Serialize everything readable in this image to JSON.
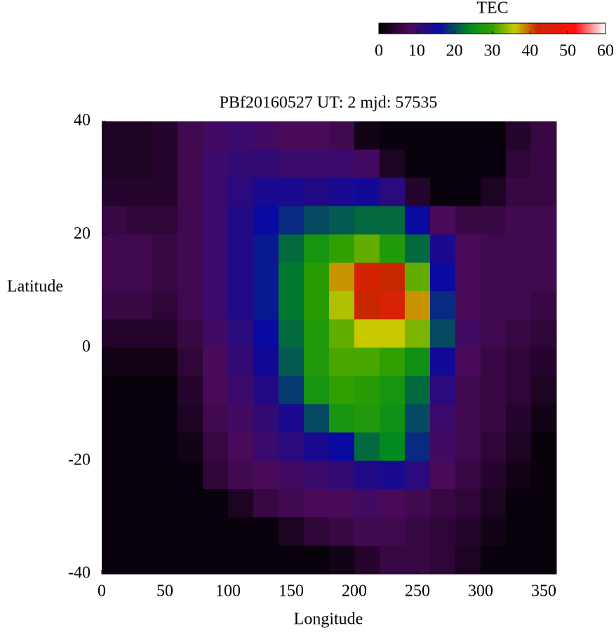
{
  "chart_data": {
    "type": "heatmap",
    "title": "PBf20160527  UT: 2  mjd: 57535",
    "x_label": "Longitude",
    "y_label": "Latitude",
    "xlim": [
      0,
      360
    ],
    "ylim": [
      -40,
      40
    ],
    "xticks": [
      0,
      50,
      100,
      150,
      200,
      250,
      300,
      350
    ],
    "yticks": [
      -40,
      -20,
      0,
      20,
      40
    ],
    "x": [
      10,
      30,
      50,
      70,
      90,
      110,
      130,
      150,
      170,
      190,
      210,
      230,
      250,
      270,
      290,
      310,
      330,
      350
    ],
    "y": [
      37.5,
      32.5,
      27.5,
      22.5,
      17.5,
      12.5,
      7.5,
      2.5,
      -2.5,
      -7.5,
      -12.5,
      -17.5,
      -22.5,
      -27.5,
      -32.5,
      -37.5
    ],
    "values": [
      [
        3,
        3,
        4,
        7,
        9,
        10,
        9,
        8,
        8,
        7,
        2,
        1,
        1,
        1,
        1,
        1,
        4,
        6
      ],
      [
        3,
        3,
        4,
        7,
        10,
        11,
        11,
        10,
        10,
        10,
        9,
        3,
        1,
        1,
        1,
        1,
        5,
        6
      ],
      [
        4,
        4,
        4,
        7,
        10,
        12,
        14,
        14,
        13,
        14,
        15,
        12,
        4,
        1,
        1,
        3,
        6,
        6
      ],
      [
        6,
        5,
        5,
        7,
        10,
        13,
        16,
        18,
        20,
        21,
        22,
        22,
        16,
        8,
        6,
        6,
        7,
        7
      ],
      [
        7,
        7,
        6,
        7,
        10,
        13,
        17,
        22,
        27,
        30,
        32,
        28,
        22,
        14,
        8,
        7,
        7,
        7
      ],
      [
        7,
        7,
        6,
        7,
        10,
        13,
        17,
        23,
        29,
        38,
        44,
        42,
        32,
        16,
        8,
        7,
        7,
        7
      ],
      [
        6,
        6,
        5,
        7,
        10,
        13,
        17,
        23,
        29,
        35,
        42,
        45,
        38,
        18,
        8,
        7,
        7,
        6
      ],
      [
        4,
        4,
        4,
        6,
        9,
        12,
        16,
        22,
        28,
        32,
        36,
        36,
        33,
        20,
        9,
        7,
        6,
        5
      ],
      [
        2,
        2,
        2,
        5,
        8,
        11,
        15,
        21,
        28,
        31,
        31,
        30,
        26,
        15,
        8,
        6,
        5,
        4
      ],
      [
        1,
        1,
        1,
        4,
        8,
        10,
        13,
        19,
        27,
        30,
        29,
        27,
        22,
        12,
        7,
        6,
        5,
        3
      ],
      [
        1,
        1,
        1,
        3,
        7,
        9,
        11,
        14,
        20,
        27,
        28,
        26,
        20,
        10,
        7,
        6,
        4,
        2
      ],
      [
        1,
        1,
        1,
        2,
        6,
        8,
        10,
        12,
        14,
        16,
        22,
        24,
        18,
        9,
        7,
        5,
        3,
        1
      ],
      [
        1,
        1,
        1,
        1,
        5,
        7,
        8,
        9,
        10,
        11,
        13,
        14,
        12,
        8,
        6,
        4,
        2,
        1
      ],
      [
        1,
        1,
        1,
        1,
        1,
        3,
        6,
        7,
        8,
        8,
        9,
        8,
        7,
        6,
        5,
        3,
        1,
        1
      ],
      [
        1,
        1,
        1,
        1,
        1,
        1,
        1,
        3,
        5,
        6,
        7,
        7,
        6,
        5,
        4,
        2,
        1,
        1
      ],
      [
        1,
        1,
        1,
        1,
        1,
        1,
        1,
        1,
        1,
        2,
        4,
        6,
        6,
        5,
        3,
        1,
        1,
        1
      ]
    ],
    "colorbar": {
      "label": "TEC",
      "lim": [
        0,
        60
      ],
      "ticks": [
        0,
        10,
        20,
        30,
        40,
        50,
        60
      ]
    },
    "colorscale": [
      [
        0,
        "#000000"
      ],
      [
        8,
        "#4a0a5a"
      ],
      [
        16,
        "#0a0aa0"
      ],
      [
        24,
        "#008a20"
      ],
      [
        30,
        "#30a000"
      ],
      [
        36,
        "#c8c800"
      ],
      [
        42,
        "#c82800"
      ],
      [
        52,
        "#ff1010"
      ],
      [
        60,
        "#ffffff"
      ]
    ]
  }
}
